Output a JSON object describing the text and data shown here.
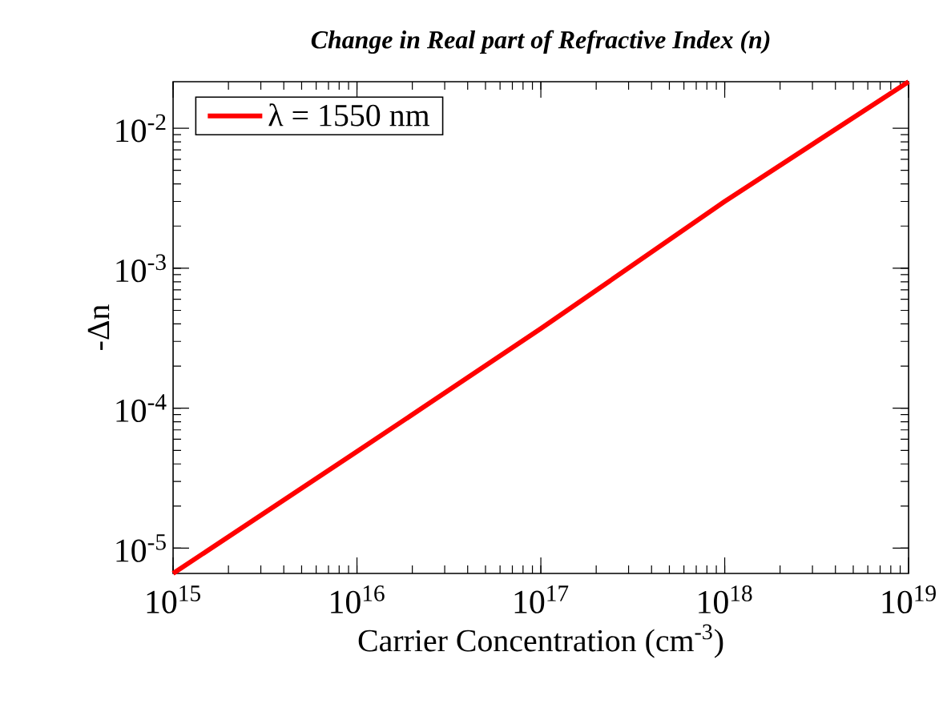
{
  "chart_data": {
    "type": "line",
    "title": "Change in Real part of Refractive Index (n)",
    "xlabel": "Carrier Concentration (cm$^{-3}$)",
    "ylabel": "-Δn",
    "log": "xy",
    "legend": "top left",
    "grid": false,
    "marker": "none",
    "line_style": "solid",
    "x": [
      1000000000000000.0,
      1e+16,
      1e+17,
      1e+18,
      1e+19
    ],
    "series": [
      {
        "name": "λ  = 1550 nm",
        "color": "#ff0000",
        "values": [
          6.6e-06,
          4.9e-05,
          0.00037,
          0.003,
          0.0215
        ]
      }
    ],
    "xlim": [
      1000000000000000.0,
      1e+19
    ],
    "ylim": [
      6.6e-06,
      0.0215
    ],
    "xticks": [
      {
        "value": 1000000000000000.0,
        "label": "10$^{15}$"
      },
      {
        "value": 1e+16,
        "label": "10$^{16}$"
      },
      {
        "value": 1e+17,
        "label": "10$^{17}$"
      },
      {
        "value": 1e+18,
        "label": "10$^{18}$"
      },
      {
        "value": 1e+19,
        "label": "10$^{19}$"
      }
    ],
    "yticks": [
      {
        "value": 1e-05,
        "label": "10$^{-5}$"
      },
      {
        "value": 0.0001,
        "label": "10$^{-4}$"
      },
      {
        "value": 0.001,
        "label": "10$^{-3}$"
      },
      {
        "value": 0.01,
        "label": "10$^{-2}$"
      }
    ]
  }
}
